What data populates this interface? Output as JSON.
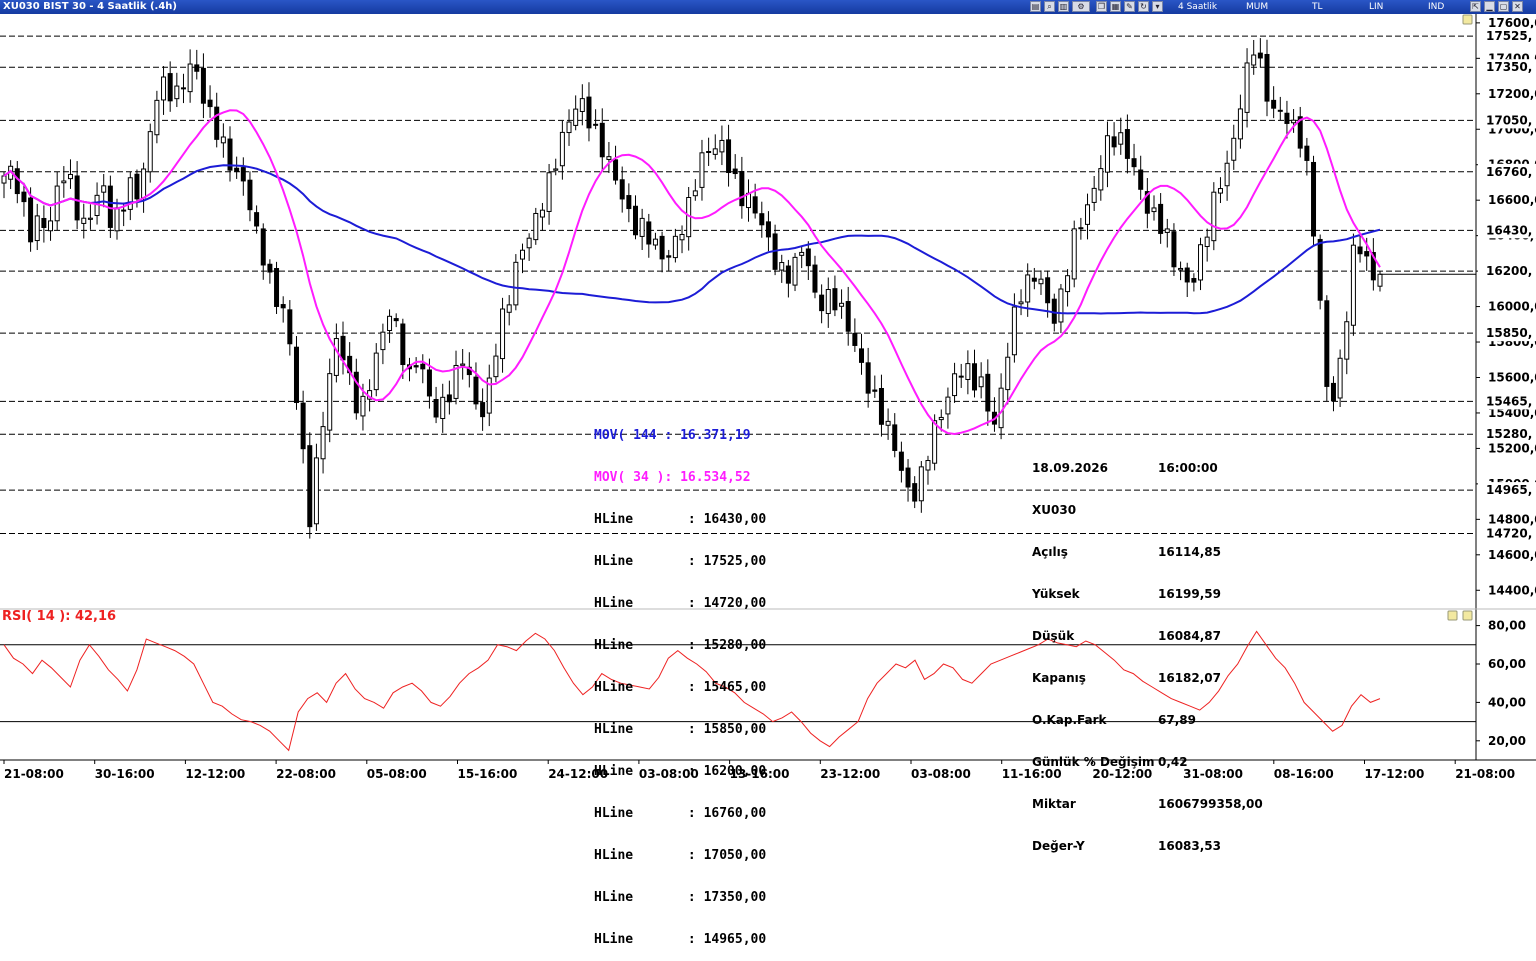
{
  "window": {
    "title": "XU030 BIST 30 - 4 Saatlik (.4h)",
    "toolbar": [
      "4 Saatlik",
      "MUM",
      "TL",
      "LIN",
      "IND"
    ]
  },
  "chart_data": [
    {
      "type": "candlestick",
      "symbol": "XU030",
      "ylim": [
        14300,
        17650
      ],
      "y_ticks": [
        14400,
        14600,
        14800,
        15000,
        15200,
        15400,
        15600,
        15800,
        16000,
        16200,
        16400,
        16600,
        16800,
        17000,
        17200,
        17400,
        17600
      ],
      "y_tick_labels": [
        "14400,00",
        "14600,00",
        "14800,00",
        "15000,00",
        "15200,00",
        "15400,00",
        "15600,00",
        "15800,00",
        "16000,00",
        "16200,00",
        "16400,00",
        "16600,00",
        "16800,00",
        "17000,00",
        "17200,00",
        "17400,00",
        "17600,00"
      ],
      "x_tick_labels": [
        "21-08:00",
        "30-16:00",
        "12-12:00",
        "22-08:00",
        "05-08:00",
        "15-16:00",
        "24-12:00",
        "03-08:00",
        "13-16:00",
        "23-12:00",
        "03-08:00",
        "11-16:00",
        "20-12:00",
        "31-08:00",
        "08-16:00",
        "17-12:00",
        "21-08:00"
      ],
      "path_points": [
        16700,
        16750,
        16600,
        16450,
        16500,
        16400,
        16650,
        16800,
        16600,
        16450,
        16550,
        16650,
        16450,
        16600,
        16700,
        16600,
        16850,
        17200,
        17300,
        17200,
        17250,
        17350,
        17200,
        17100,
        17000,
        16800,
        16700,
        16650,
        16450,
        16300,
        16050,
        15950,
        15700,
        15300,
        14850,
        15200,
        15500,
        15800,
        15700,
        15500,
        15450,
        15600,
        15800,
        16000,
        15850,
        15600,
        15700,
        15500,
        15400,
        15500,
        15600,
        15700,
        15500,
        15350,
        15600,
        15900,
        16000,
        16200,
        16350,
        16500,
        16650,
        16750,
        16900,
        17050,
        17200,
        17100,
        16950,
        16800,
        16700,
        16600,
        16500,
        16450,
        16350,
        16250,
        16300,
        16450,
        16550,
        16700,
        16850,
        16900,
        16950,
        16750,
        16600,
        16550,
        16500,
        16400,
        16250,
        16150,
        16200,
        16350,
        16100,
        16050,
        16050,
        15950,
        15850,
        15750,
        15600,
        15450,
        15300,
        15200,
        15050,
        14950,
        15050,
        15200,
        15350,
        15500,
        15700,
        15650,
        15550,
        15500,
        15300,
        15600,
        15900,
        16050,
        16100,
        16200,
        16050,
        15950,
        16150,
        16350,
        16500,
        16650,
        16850,
        16950,
        16900,
        16850,
        16750,
        16600,
        16500,
        16400,
        16250,
        16200,
        16150,
        16300,
        16450,
        16650,
        16800,
        17050,
        17300,
        17450,
        17250,
        17100,
        17150,
        17050,
        16950,
        16700,
        16250,
        15600,
        15500,
        15800,
        16250,
        16350,
        16200,
        16182
      ],
      "current": {
        "open": 16114.85,
        "high": 16199.59,
        "low": 16084.87,
        "close": 16182.07
      },
      "series": [
        {
          "name": "MOV( 144 : 16.371,19",
          "color": "#1c1cd6",
          "last": 16371.19
        },
        {
          "name": "MOV( 34 ): 16.534,52",
          "color": "#ff1cff",
          "last": 16534.52
        }
      ],
      "hlines": [
        {
          "value": 16430,
          "axis_label": "16430,"
        },
        {
          "value": 17525,
          "axis_label": "17525,"
        },
        {
          "value": 14720,
          "axis_label": "14720,"
        },
        {
          "value": 15280,
          "axis_label": "15280,"
        },
        {
          "value": 15465,
          "axis_label": "15465,"
        },
        {
          "value": 15850,
          "axis_label": "15850,"
        },
        {
          "value": 16200,
          "axis_label": "16200,"
        },
        {
          "value": 16760,
          "axis_label": "16760,"
        },
        {
          "value": 17050,
          "axis_label": "17050,"
        },
        {
          "value": 17350,
          "axis_label": "17350,"
        },
        {
          "value": 14965,
          "axis_label": "14965,"
        }
      ],
      "legend": [
        {
          "label": "MOV( 144 : 16.371,19",
          "color": "#1c1cd6"
        },
        {
          "label": "MOV( 34 ): 16.534,52",
          "color": "#ff1cff"
        },
        {
          "label": "HLine       : 16430,00",
          "color": "#000000"
        },
        {
          "label": "HLine       : 17525,00",
          "color": "#000000"
        },
        {
          "label": "HLine       : 14720,00",
          "color": "#000000"
        },
        {
          "label": "HLine       : 15280,00",
          "color": "#000000"
        },
        {
          "label": "HLine       : 15465,00",
          "color": "#000000"
        },
        {
          "label": "HLine       : 15850,00",
          "color": "#000000"
        },
        {
          "label": "HLine       : 16200,00",
          "color": "#000000"
        },
        {
          "label": "HLine       : 16760,00",
          "color": "#000000"
        },
        {
          "label": "HLine       : 17050,00",
          "color": "#000000"
        },
        {
          "label": "HLine       : 17350,00",
          "color": "#000000"
        },
        {
          "label": "HLine       : 14965,00",
          "color": "#000000"
        }
      ],
      "info_box": [
        [
          "18.09.2026",
          "16:00:00"
        ],
        [
          "XU030",
          ""
        ],
        [
          "Açılış",
          "16114,85"
        ],
        [
          "Yüksek",
          "16199,59"
        ],
        [
          "Düşük",
          "16084,87"
        ],
        [
          "Kapanış",
          "16182,07"
        ],
        [
          "O.Kap.Fark",
          "67,89"
        ],
        [
          "Günlük % Değişim",
          "0,42"
        ],
        [
          "Miktar",
          "1606799358,00"
        ],
        [
          "Değer-Y",
          "16083,53"
        ]
      ]
    },
    {
      "type": "line",
      "title": "RSI( 14 ): 42,16",
      "color": "#ee2222",
      "ylim": [
        10,
        85
      ],
      "y_ticks": [
        20,
        40,
        60,
        80
      ],
      "y_tick_labels": [
        "20,00",
        "40,00",
        "60,00",
        "80,00"
      ],
      "bands": [
        70,
        30
      ],
      "path_points": [
        70,
        63,
        60,
        55,
        62,
        58,
        53,
        48,
        62,
        70,
        64,
        57,
        52,
        46,
        57,
        73,
        71,
        69,
        67,
        64,
        60,
        50,
        40,
        38,
        34,
        31,
        30,
        28,
        25,
        20,
        15,
        35,
        42,
        45,
        40,
        50,
        55,
        47,
        42,
        40,
        37,
        45,
        48,
        50,
        46,
        40,
        38,
        43,
        50,
        55,
        58,
        62,
        70,
        69,
        67,
        72,
        76,
        73,
        67,
        58,
        50,
        44,
        48,
        55,
        52,
        50,
        49,
        48,
        47,
        53,
        63,
        67,
        63,
        60,
        56,
        50,
        48,
        45,
        40,
        37,
        34,
        30,
        32,
        35,
        30,
        24,
        20,
        17,
        22,
        26,
        30,
        42,
        50,
        55,
        60,
        58,
        62,
        52,
        55,
        60,
        58,
        52,
        50,
        55,
        60,
        62,
        64,
        66,
        68,
        70,
        73,
        71,
        70,
        69,
        72,
        70,
        66,
        62,
        57,
        55,
        51,
        48,
        45,
        42,
        40,
        38,
        36,
        40,
        46,
        54,
        60,
        69,
        77,
        70,
        63,
        58,
        50,
        40,
        35,
        30,
        25,
        28,
        38,
        44,
        40,
        42
      ]
    }
  ]
}
